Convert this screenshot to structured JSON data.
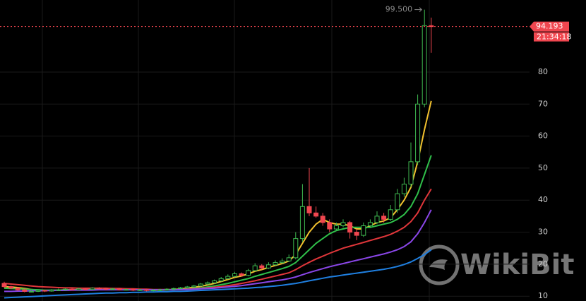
{
  "chart_data": {
    "type": "candlestick",
    "categories": [
      null,
      null,
      null,
      null,
      null,
      null,
      null,
      null,
      null,
      null,
      null,
      null,
      null,
      null,
      null,
      null,
      null,
      null,
      null,
      null,
      null,
      null,
      null,
      null,
      null,
      null,
      null,
      null,
      null,
      null,
      null,
      null,
      null,
      null,
      null,
      null,
      null,
      null,
      null,
      null,
      null,
      null,
      null,
      null,
      null,
      null,
      null,
      null,
      null,
      null,
      null,
      null,
      null,
      null,
      null,
      null,
      null,
      null,
      null,
      null,
      null,
      null,
      null,
      null
    ],
    "open": [
      14,
      13,
      12.5,
      12,
      11.5,
      11.5,
      11.8,
      11.6,
      11.9,
      12,
      12.2,
      12,
      12.3,
      12.1,
      12.5,
      12.4,
      12.2,
      12.3,
      12,
      12.1,
      11.9,
      12,
      11.8,
      11.9,
      12,
      12.2,
      12.4,
      12.6,
      12.9,
      13.2,
      13.8,
      14.2,
      14.8,
      15.5,
      16.2,
      17,
      16.5,
      18,
      19.5,
      18.8,
      19.8,
      20.5,
      21,
      22,
      28,
      38,
      36,
      35,
      33,
      31,
      32,
      33,
      30,
      29,
      32,
      33,
      35,
      34,
      37,
      42,
      45,
      52,
      70,
      94.5
    ],
    "high": [
      14.5,
      13.3,
      12.8,
      12.3,
      11.9,
      12.1,
      12,
      12.2,
      12.4,
      12.5,
      12.5,
      12.6,
      12.5,
      12.8,
      12.8,
      12.6,
      12.6,
      12.5,
      12.4,
      12.3,
      12.3,
      12.2,
      12.2,
      12.3,
      12.5,
      12.7,
      12.9,
      13.2,
      13.5,
      14.1,
      14.6,
      15.2,
      16,
      16.8,
      17.6,
      17.4,
      18.5,
      20.3,
      20,
      20.6,
      21.2,
      21.8,
      23,
      30,
      45,
      50,
      38,
      36,
      34,
      33,
      34,
      33.5,
      31,
      33,
      34,
      36.5,
      36,
      38.5,
      43.5,
      47,
      58,
      73,
      99.5,
      97
    ],
    "low": [
      12.6,
      12.2,
      11.7,
      11.2,
      11.2,
      11.3,
      11.3,
      11.4,
      11.6,
      11.8,
      11.8,
      11.9,
      11.9,
      11.9,
      12.1,
      11.9,
      11.9,
      11.8,
      11.8,
      11.6,
      11.6,
      11.5,
      11.5,
      11.6,
      11.8,
      11.9,
      12.2,
      12.4,
      12.7,
      13,
      13.5,
      13.9,
      14.5,
      15.2,
      15.9,
      16.1,
      16.2,
      17.7,
      18.3,
      18.5,
      19.5,
      20.1,
      20.7,
      21.5,
      27,
      35,
      34.5,
      32,
      30,
      30.5,
      31.5,
      28,
      27.5,
      28.5,
      31.5,
      32.5,
      33,
      33.5,
      36,
      41,
      44,
      51,
      69,
      86
    ],
    "close": [
      13,
      12.5,
      12,
      11.5,
      11.5,
      11.8,
      11.6,
      11.9,
      12,
      12.2,
      12,
      12.3,
      12.1,
      12.5,
      12.4,
      12.2,
      12.3,
      12,
      12.1,
      11.9,
      12,
      11.8,
      11.9,
      12,
      12.2,
      12.4,
      12.6,
      12.9,
      13.2,
      13.8,
      14.2,
      14.8,
      15.5,
      16.2,
      17,
      16.5,
      18,
      19.5,
      18.8,
      19.8,
      20.5,
      21,
      22,
      28,
      38,
      36,
      35,
      33,
      31,
      32,
      33,
      30,
      29,
      32,
      33,
      35,
      34,
      37,
      42,
      45,
      52,
      70,
      94.5,
      94.193
    ],
    "up_color": "#3fb950",
    "down_color": "#f0464f",
    "series": [
      {
        "color": "#f2c12e",
        "values": [
          13,
          12.9,
          12.7,
          12.4,
          12.1,
          11.9,
          11.8,
          11.8,
          11.9,
          12,
          12,
          12.1,
          12.1,
          12.2,
          12.3,
          12.3,
          12.3,
          12.2,
          12.2,
          12.1,
          12,
          12,
          11.9,
          11.9,
          12,
          12.1,
          12.3,
          12.5,
          12.8,
          13.1,
          13.5,
          14,
          14.6,
          15.2,
          15.9,
          16.3,
          17,
          17.8,
          18.3,
          19,
          19.6,
          20.2,
          21,
          23,
          26.5,
          30,
          32.5,
          34,
          33,
          32.5,
          32.5,
          32,
          31,
          31,
          32,
          33,
          33.5,
          34.5,
          37,
          40,
          44,
          52,
          62,
          71
        ]
      },
      {
        "color": "#2fbf4a",
        "values": [
          12.5,
          12.4,
          12.3,
          12.2,
          12.1,
          12,
          11.9,
          11.9,
          11.9,
          11.9,
          12,
          12,
          12,
          12.1,
          12.1,
          12.2,
          12.2,
          12.2,
          12.2,
          12.1,
          12.1,
          12,
          12,
          12,
          12,
          12,
          12.1,
          12.2,
          12.4,
          12.6,
          12.9,
          13.2,
          13.6,
          14,
          14.5,
          15,
          15.5,
          16.2,
          16.8,
          17.4,
          18,
          18.6,
          19.3,
          20.5,
          22.5,
          24.5,
          26.5,
          28,
          29.5,
          30.5,
          31,
          31.5,
          31.5,
          31.5,
          31.5,
          32,
          32.5,
          33,
          34,
          35.5,
          38,
          42,
          48,
          54
        ]
      },
      {
        "color": "#e0363a",
        "values": [
          14,
          13.8,
          13.6,
          13.4,
          13.2,
          13,
          12.9,
          12.8,
          12.7,
          12.6,
          12.6,
          12.5,
          12.5,
          12.5,
          12.5,
          12.5,
          12.4,
          12.4,
          12.3,
          12.3,
          12.2,
          12.2,
          12.1,
          12.1,
          12.1,
          12.1,
          12.1,
          12.2,
          12.3,
          12.4,
          12.6,
          12.8,
          13,
          13.3,
          13.6,
          14,
          14.4,
          14.8,
          15.3,
          15.8,
          16.3,
          16.8,
          17.3,
          18.3,
          19.5,
          20.6,
          21.6,
          22.5,
          23.4,
          24.2,
          25,
          25.6,
          26.2,
          26.8,
          27.4,
          28,
          28.6,
          29.3,
          30.3,
          31.5,
          33.3,
          36,
          40,
          43.5
        ]
      },
      {
        "color": "#8a46e8",
        "values": [
          11.5,
          11.5,
          11.6,
          11.6,
          11.7,
          11.7,
          11.7,
          11.8,
          11.8,
          11.8,
          11.9,
          11.9,
          11.9,
          11.9,
          12,
          12,
          12,
          12,
          12,
          12,
          12,
          12,
          12,
          12,
          12,
          12,
          12.1,
          12.1,
          12.2,
          12.3,
          12.4,
          12.5,
          12.7,
          12.9,
          13.1,
          13.3,
          13.6,
          13.9,
          14.2,
          14.5,
          14.8,
          15.1,
          15.5,
          16,
          16.7,
          17.4,
          18,
          18.6,
          19.2,
          19.7,
          20.2,
          20.7,
          21.2,
          21.7,
          22.2,
          22.7,
          23.2,
          23.8,
          24.5,
          25.5,
          27,
          29.5,
          33,
          37
        ]
      },
      {
        "color": "#1f7fe0",
        "values": [
          9.5,
          9.6,
          9.7,
          9.8,
          9.9,
          10,
          10.1,
          10.2,
          10.3,
          10.4,
          10.5,
          10.6,
          10.7,
          10.8,
          10.9,
          11,
          11,
          11.1,
          11.1,
          11.2,
          11.2,
          11.3,
          11.3,
          11.4,
          11.4,
          11.5,
          11.5,
          11.6,
          11.7,
          11.8,
          11.9,
          12,
          12.1,
          12.2,
          12.3,
          12.4,
          12.5,
          12.7,
          12.8,
          13,
          13.2,
          13.4,
          13.7,
          14,
          14.4,
          14.8,
          15.2,
          15.6,
          16,
          16.3,
          16.6,
          16.9,
          17.2,
          17.5,
          17.8,
          18.1,
          18.4,
          18.8,
          19.3,
          19.9,
          20.7,
          21.8,
          23,
          24.5
        ]
      }
    ],
    "ylim": [
      8.5,
      102.5
    ],
    "yticks": [
      10,
      20,
      30,
      40,
      50,
      60,
      70,
      80
    ],
    "grid": true,
    "max_label": "99.500",
    "countdown": "21:34:18",
    "watermark": "WikiBit"
  }
}
